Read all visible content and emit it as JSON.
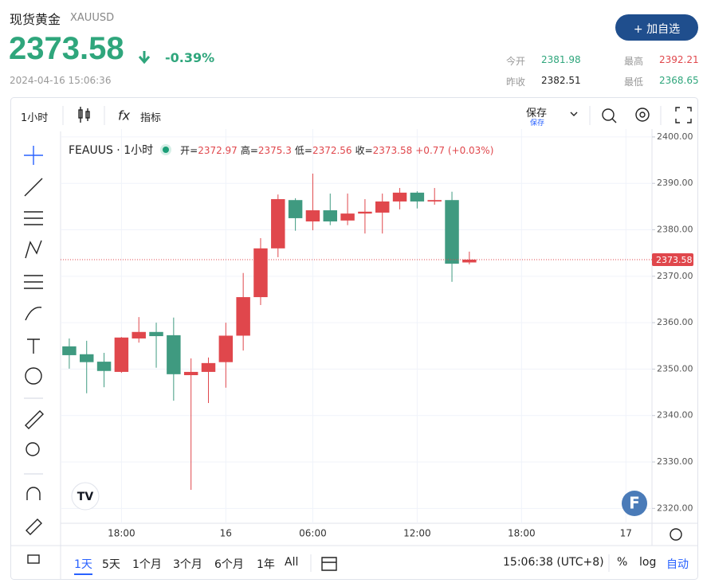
{
  "header": {
    "name": "现货黄金",
    "symbol": "XAUUSD",
    "price": "2373.58",
    "change": "-0.39%",
    "datetime": "2024-04-16 15:06:36",
    "button": "+ 加自选",
    "stats": [
      {
        "label": "今开",
        "value": "2381.98"
      },
      {
        "label": "最高",
        "value": "2392.21"
      },
      {
        "label": "昨收",
        "value": "2382.51"
      },
      {
        "label": "最低",
        "value": "2368.65"
      }
    ]
  },
  "toolbar": {
    "interval": "1小时",
    "indicators": "指标",
    "save": "保存",
    "save_sub": "保存"
  },
  "chart_data": {
    "type": "candlestick",
    "legend": {
      "symbol": "FEAUUS · 1小时",
      "labels": [
        "开=",
        "高=",
        "低=",
        "收="
      ],
      "change": "+0.77 (+0.03%)"
    },
    "categories": [
      null,
      null,
      null,
      "18:00",
      null,
      null,
      null,
      null,
      null,
      "16",
      null,
      null,
      null,
      null,
      "06:00",
      null,
      null,
      null,
      null,
      null,
      "12:00",
      null,
      null,
      null,
      null,
      null,
      "18:00",
      null,
      null,
      null,
      null,
      null,
      "17",
      null
    ],
    "open": [
      2354.9,
      2353.2,
      2351.6,
      2349.4,
      2356.6,
      2358.0,
      2357.3,
      2348.7,
      2349.4,
      2351.5,
      2357.2,
      2365.5,
      2376.0,
      2386.4,
      2381.8,
      2384.2,
      2382.0,
      2383.5,
      2383.7,
      2386.1,
      2388.0,
      2386.1,
      2386.4,
      2372.97,
      null,
      null,
      null,
      null,
      null,
      null,
      null,
      null,
      null,
      null
    ],
    "high": [
      2356.6,
      2356.1,
      2353.5,
      2356.9,
      2361.2,
      2360.0,
      2361.1,
      2352.3,
      2352.5,
      2360.0,
      2370.7,
      2378.2,
      2387.6,
      2386.8,
      2392.1,
      2387.8,
      2387.8,
      2386.6,
      2387.8,
      2389.0,
      2388.3,
      2389.0,
      2388.2,
      2375.3,
      null,
      null,
      null,
      null,
      null,
      null,
      null,
      null,
      null,
      null
    ],
    "low": [
      2350.1,
      2344.8,
      2346.1,
      2349.2,
      2355.7,
      2350.3,
      2343.2,
      2324.0,
      2342.7,
      2346.0,
      2354.0,
      2363.8,
      2374.1,
      2379.8,
      2379.9,
      2381.0,
      2381.0,
      2379.2,
      2379.2,
      2384.4,
      2384.6,
      2385.4,
      2368.8,
      2372.56,
      null,
      null,
      null,
      null,
      null,
      null,
      null,
      null,
      null,
      null
    ],
    "close": [
      2353.0,
      2351.5,
      2349.6,
      2356.8,
      2358.0,
      2357.1,
      2348.9,
      2349.4,
      2351.3,
      2357.2,
      2365.5,
      2376.0,
      2386.6,
      2382.5,
      2384.2,
      2381.8,
      2383.5,
      2383.9,
      2386.1,
      2388.0,
      2386.1,
      2386.4,
      2372.7,
      2373.58,
      null,
      null,
      null,
      null,
      null,
      null,
      null,
      null,
      null,
      null
    ],
    "up_color": "#e0474c",
    "down_color": "#3f9a80",
    "ylim": [
      2316.8,
      2401.7
    ],
    "yticks": [
      {
        "value": 2320,
        "label": "2320.00"
      },
      {
        "value": 2330,
        "label": "2330.00"
      },
      {
        "value": 2340,
        "label": "2340.00"
      },
      {
        "value": 2350,
        "label": "2350.00"
      },
      {
        "value": 2360,
        "label": "2360.00"
      },
      {
        "value": 2370,
        "label": "2370.00"
      },
      {
        "value": 2380,
        "label": "2380.00"
      },
      {
        "value": 2390,
        "label": "2390.00"
      },
      {
        "value": 2400,
        "label": "2400.00"
      }
    ],
    "grid": true
  },
  "bottom_bar": {
    "ranges": [
      "1天",
      "5天",
      "1个月",
      "3个月",
      "6个月",
      "1年",
      "All"
    ],
    "time": "15:06:38 (UTC+8)",
    "percent": "%",
    "log": "log",
    "auto": "自动"
  }
}
